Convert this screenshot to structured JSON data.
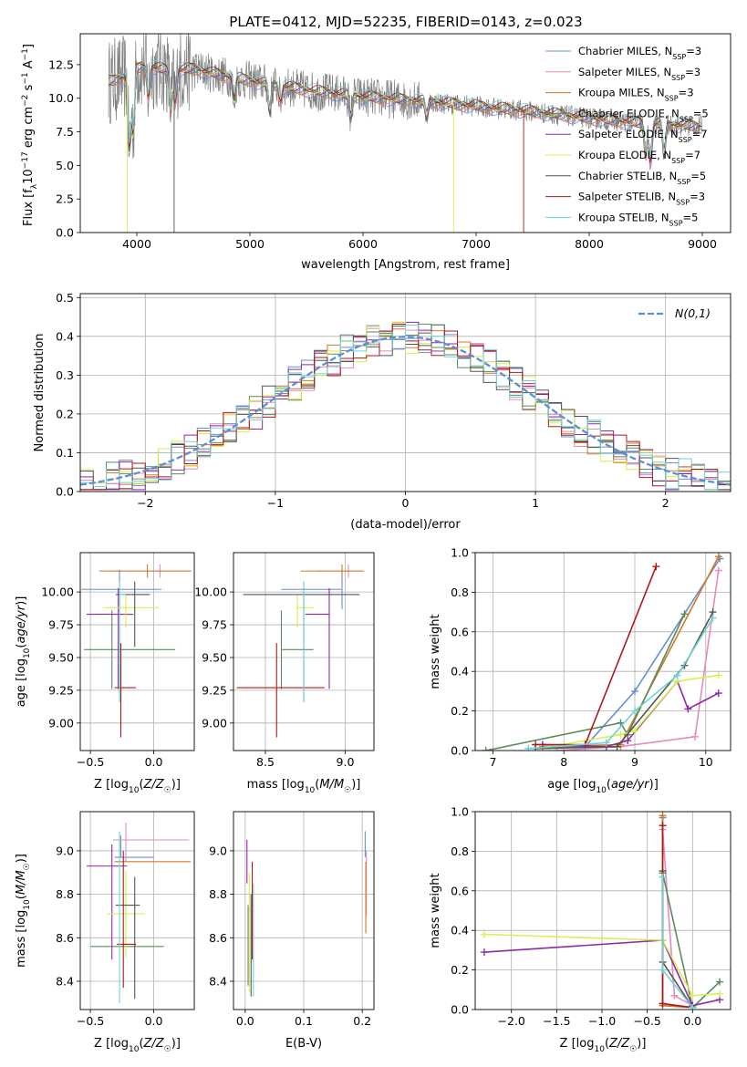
{
  "figure": {
    "title": "PLATE=0412, MJD=52235, FIBERID=0143, z=0.023"
  },
  "colors": {
    "Chabrier MILES": "#6a8fd0",
    "Salpeter MILES": "#e38bbd",
    "Kroupa MILES": "#d07a2a",
    "Chabrier ELODIE": "#5c8a5c",
    "Salpeter ELODIE": "#8e2aa6",
    "Kroupa ELODIE": "#d9ef4f",
    "Chabrier STELIB": "#555555",
    "Salpeter STELIB": "#b01818",
    "Kroupa STELIB": "#6fd3d7",
    "data": "#808080",
    "normal": "#5b8fd6",
    "grid": "#b0b0b0"
  },
  "chart_data": [
    {
      "id": "spectrum",
      "type": "line",
      "title": "PLATE=0412, MJD=52235, FIBERID=0143, z=0.023",
      "xlabel": "wavelength [Angstrom, rest frame]",
      "ylabel": "Flux [f_λ 10^-17 erg cm^-2 s^-1 A^-1]",
      "xlim": [
        3500,
        9250
      ],
      "ylim": [
        0,
        14.8
      ],
      "xticks": [
        4000,
        5000,
        6000,
        7000,
        8000,
        9000
      ],
      "yticks": [
        0.0,
        2.5,
        5.0,
        7.5,
        10.0,
        12.5
      ],
      "grid": false,
      "legend": "top-right",
      "continuum": {
        "x": [
          3750,
          3900,
          4000,
          4100,
          4300,
          4500,
          4800,
          5000,
          5500,
          6000,
          6500,
          7000,
          7500,
          8000,
          8500,
          9000
        ],
        "y": [
          11.2,
          11.6,
          12.2,
          12.4,
          12.0,
          12.2,
          11.6,
          11.3,
          10.6,
          10.1,
          9.8,
          9.4,
          9.0,
          8.5,
          8.1,
          7.9
        ]
      },
      "series": [
        {
          "name": "Chabrier MILES",
          "nssp": "3"
        },
        {
          "name": "Salpeter MILES",
          "nssp": "3"
        },
        {
          "name": "Kroupa MILES",
          "nssp": "3"
        },
        {
          "name": "Chabrier ELODIE",
          "nssp": "5"
        },
        {
          "name": "Salpeter ELODIE",
          "nssp": "7"
        },
        {
          "name": "Kroupa ELODIE",
          "nssp": "7"
        },
        {
          "name": "Chabrier STELIB",
          "nssp": "5"
        },
        {
          "name": "Salpeter STELIB",
          "nssp": "3"
        },
        {
          "name": "Kroupa STELIB",
          "nssp": "5"
        }
      ]
    },
    {
      "id": "residuals",
      "type": "line",
      "xlabel": "(data-model)/error",
      "ylabel": "Normed distribution",
      "xlim": [
        -2.5,
        2.5
      ],
      "ylim": [
        0,
        0.51
      ],
      "xticks": [
        -2,
        -1,
        0,
        1,
        2
      ],
      "yticks": [
        0.0,
        0.1,
        0.2,
        0.3,
        0.4,
        0.5
      ],
      "grid": true,
      "legend": "top-right",
      "normal_label": "N(0,1)",
      "bin_width": 0.1
    },
    {
      "id": "age_vs_Z",
      "type": "scatter",
      "xlabel": "Z [log10(Z/Z☉)]",
      "ylabel": "age  [log10(age/yr)]",
      "xlim": [
        -0.58,
        0.32
      ],
      "ylim": [
        8.79,
        10.3
      ],
      "xticks": [
        -0.5,
        0.0
      ],
      "yticks": [
        9.0,
        9.25,
        9.5,
        9.75,
        10.0
      ],
      "grid": true,
      "points": [
        {
          "model": "Chabrier MILES",
          "x": -0.27,
          "xerr": [
            0.3,
            0.33
          ],
          "y": 10.02,
          "yerr": [
            0.15,
            0.15
          ]
        },
        {
          "model": "Salpeter MILES",
          "x": 0.05,
          "xerr": [
            0.4,
            0.25
          ],
          "y": 10.16,
          "yerr": [
            0.05,
            0.05
          ]
        },
        {
          "model": "Kroupa MILES",
          "x": -0.05,
          "xerr": [
            0.38,
            0.34
          ],
          "y": 10.16,
          "yerr": [
            0.05,
            0.05
          ]
        },
        {
          "model": "Chabrier ELODIE",
          "x": -0.33,
          "xerr": [
            0.22,
            0.5
          ],
          "y": 9.56,
          "yerr": [
            0.3,
            0.3
          ]
        },
        {
          "model": "Salpeter ELODIE",
          "x": -0.28,
          "xerr": [
            0.25,
            0.12
          ],
          "y": 9.83,
          "yerr": [
            0.57,
            0.2
          ]
        },
        {
          "model": "Kroupa ELODIE",
          "x": -0.22,
          "xerr": [
            0.18,
            0.26
          ],
          "y": 9.88,
          "yerr": [
            0.15,
            0.1
          ]
        },
        {
          "model": "Chabrier STELIB",
          "x": -0.15,
          "xerr": [
            0.15,
            0.12
          ],
          "y": 9.98,
          "yerr": [
            0.4,
            0.1
          ]
        },
        {
          "model": "Salpeter STELIB",
          "x": -0.26,
          "xerr": [
            0.05,
            0.12
          ],
          "y": 9.27,
          "yerr": [
            0.38,
            0.34
          ]
        },
        {
          "model": "Kroupa STELIB",
          "x": -0.27,
          "xerr": [
            0.0,
            0.05
          ],
          "y": 9.98,
          "yerr": [
            0.82,
            0.1
          ]
        }
      ]
    },
    {
      "id": "age_vs_mass",
      "type": "scatter",
      "xlabel": "mass [log10(M/M☉)]",
      "ylabel": "",
      "xlim": [
        8.3,
        9.18
      ],
      "ylim": [
        8.79,
        10.3
      ],
      "xticks": [
        8.5,
        9.0
      ],
      "yticks": [
        9.0,
        9.25,
        9.5,
        9.75,
        10.0
      ],
      "grid": true,
      "points": [
        {
          "model": "Chabrier MILES",
          "x": 8.98,
          "xerr": [
            0.38,
            0.0
          ],
          "y": 10.02,
          "yerr": [
            0.15,
            0.15
          ]
        },
        {
          "model": "Salpeter MILES",
          "x": 9.02,
          "xerr": [
            0.2,
            0.1
          ],
          "y": 10.16,
          "yerr": [
            0.05,
            0.05
          ]
        },
        {
          "model": "Kroupa MILES",
          "x": 8.98,
          "xerr": [
            0.26,
            0.13
          ],
          "y": 10.16,
          "yerr": [
            0.05,
            0.05
          ]
        },
        {
          "model": "Chabrier ELODIE",
          "x": 8.6,
          "xerr": [
            0.0,
            0.2
          ],
          "y": 9.56,
          "yerr": [
            0.3,
            0.3
          ]
        },
        {
          "model": "Salpeter ELODIE",
          "x": 8.9,
          "xerr": [
            0.15,
            0.0
          ],
          "y": 9.83,
          "yerr": [
            0.57,
            0.2
          ]
        },
        {
          "model": "Kroupa ELODIE",
          "x": 8.7,
          "xerr": [
            0.0,
            0.1
          ],
          "y": 9.88,
          "yerr": [
            0.15,
            0.1
          ]
        },
        {
          "model": "Chabrier STELIB",
          "x": 8.74,
          "xerr": [
            0.38,
            0.35
          ],
          "y": 9.98,
          "yerr": [
            0.82,
            0.1
          ]
        },
        {
          "model": "Salpeter STELIB",
          "x": 8.57,
          "xerr": [
            0.25,
            0.3
          ],
          "y": 9.27,
          "yerr": [
            0.38,
            0.34
          ]
        },
        {
          "model": "Kroupa STELIB",
          "x": 8.74,
          "xerr": [
            0.0,
            0.0
          ],
          "y": 9.98,
          "yerr": [
            0.82,
            0.1
          ]
        }
      ]
    },
    {
      "id": "weight_vs_age",
      "type": "line",
      "xlabel": "age  [log10(age/yr)]",
      "ylabel": "mass weight",
      "xlim": [
        6.75,
        10.35
      ],
      "ylim": [
        0,
        1.0
      ],
      "xticks": [
        7,
        8,
        9,
        10
      ],
      "yticks": [
        0.0,
        0.2,
        0.4,
        0.6,
        0.8,
        1.0
      ],
      "grid": true,
      "series": [
        {
          "model": "Chabrier MILES",
          "x": [
            7.5,
            8.3,
            9.0,
            10.2
          ],
          "y": [
            0.01,
            0.02,
            0.3,
            0.97
          ]
        },
        {
          "model": "Salpeter MILES",
          "x": [
            7.9,
            8.8,
            9.85,
            10.18
          ],
          "y": [
            0.0,
            0.02,
            0.07,
            0.91
          ]
        },
        {
          "model": "Kroupa MILES",
          "x": [
            7.7,
            8.8,
            10.18
          ],
          "y": [
            0.02,
            0.03,
            0.98
          ]
        },
        {
          "model": "Chabrier ELODIE",
          "x": [
            6.9,
            8.8,
            8.9,
            9.7
          ],
          "y": [
            0.0,
            0.14,
            0.08,
            0.69
          ]
        },
        {
          "model": "Salpeter ELODIE",
          "x": [
            7.7,
            8.6,
            8.9,
            9.6,
            9.75,
            10.18
          ],
          "y": [
            0.03,
            0.02,
            0.05,
            0.35,
            0.21,
            0.29
          ]
        },
        {
          "model": "Kroupa ELODIE",
          "x": [
            7.8,
            8.8,
            9.0,
            9.6,
            10.18
          ],
          "y": [
            0.02,
            0.08,
            0.1,
            0.35,
            0.38
          ]
        },
        {
          "model": "Chabrier STELIB",
          "x": [
            7.6,
            8.75,
            9.7,
            10.1
          ],
          "y": [
            0.01,
            0.02,
            0.43,
            0.7
          ]
        },
        {
          "model": "Salpeter STELIB",
          "x": [
            7.6,
            8.3,
            9.3
          ],
          "y": [
            0.03,
            0.03,
            0.93
          ]
        },
        {
          "model": "Kroupa STELIB",
          "x": [
            7.5,
            8.6,
            9.0,
            9.6,
            10.1
          ],
          "y": [
            0.01,
            0.04,
            0.2,
            0.38,
            0.67
          ]
        }
      ]
    },
    {
      "id": "mass_vs_Z",
      "type": "scatter",
      "xlabel": "Z [log10(Z/Z☉)]",
      "ylabel": "mass [log10(M/M☉)]",
      "xlim": [
        -0.58,
        0.32
      ],
      "ylim": [
        8.27,
        9.18
      ],
      "xticks": [
        -0.5,
        0.0
      ],
      "yticks": [
        8.4,
        8.6,
        8.8,
        9.0
      ],
      "grid": true,
      "points": [
        {
          "model": "Chabrier MILES",
          "x": -0.26,
          "xerr": [
            0.05,
            0.26
          ],
          "y": 8.97,
          "yerr": [
            0.0,
            0.1
          ]
        },
        {
          "model": "Salpeter MILES",
          "x": -0.22,
          "xerr": [
            0.1,
            0.5
          ],
          "y": 9.05,
          "yerr": [
            0.1,
            0.08
          ]
        },
        {
          "model": "Kroupa MILES",
          "x": -0.26,
          "xerr": [
            0.05,
            0.55
          ],
          "y": 8.95,
          "yerr": [
            0.0,
            0.0
          ]
        },
        {
          "model": "Chabrier ELODIE",
          "x": -0.2,
          "xerr": [
            0.3,
            0.28
          ],
          "y": 8.56,
          "yerr": [
            0.0,
            0.0
          ]
        },
        {
          "model": "Salpeter ELODIE",
          "x": -0.33,
          "xerr": [
            0.2,
            0.12
          ],
          "y": 8.93,
          "yerr": [
            0.43,
            0.1
          ]
        },
        {
          "model": "Kroupa ELODIE",
          "x": -0.22,
          "xerr": [
            0.15,
            0.15
          ],
          "y": 8.71,
          "yerr": [
            0.2,
            0.2
          ]
        },
        {
          "model": "Chabrier STELIB",
          "x": -0.15,
          "xerr": [
            0.15,
            0.04
          ],
          "y": 8.75,
          "yerr": [
            0.43,
            0.13
          ]
        },
        {
          "model": "Salpeter STELIB",
          "x": -0.24,
          "xerr": [
            0.05,
            0.1
          ],
          "y": 8.57,
          "yerr": [
            0.2,
            0.43
          ]
        },
        {
          "model": "Kroupa STELIB",
          "x": -0.27,
          "xerr": [
            0.0,
            0.0
          ],
          "y": 8.97,
          "yerr": [
            0.67,
            0.12
          ]
        }
      ]
    },
    {
      "id": "mass_vs_ebv",
      "type": "scatter",
      "xlabel": "E(B-V)",
      "ylabel": "",
      "xlim": [
        -0.02,
        0.22
      ],
      "ylim": [
        8.27,
        9.18
      ],
      "xticks": [
        0.0,
        0.1,
        0.2
      ],
      "yticks": [
        8.4,
        8.6,
        8.8,
        9.0
      ],
      "grid": true,
      "points": [
        {
          "model": "Chabrier MILES",
          "x": 0.205,
          "y": 8.97,
          "yerr": [
            0.0,
            0.12
          ]
        },
        {
          "model": "Salpeter MILES",
          "x": 0.207,
          "y": 8.9,
          "yerr": [
            0.2,
            0.1
          ]
        },
        {
          "model": "Kroupa MILES",
          "x": 0.206,
          "y": 8.85,
          "yerr": [
            0.23,
            0.1
          ]
        },
        {
          "model": "Chabrier ELODIE",
          "x": 0.005,
          "y": 8.5,
          "yerr": [
            0.12,
            0.25
          ]
        },
        {
          "model": "Salpeter ELODIE",
          "x": 0.003,
          "y": 8.95,
          "yerr": [
            0.1,
            0.1
          ]
        },
        {
          "model": "Kroupa ELODIE",
          "x": 0.007,
          "y": 8.7,
          "yerr": [
            0.35,
            0.2
          ]
        },
        {
          "model": "Chabrier STELIB",
          "x": 0.01,
          "y": 8.6,
          "yerr": [
            0.27,
            0.2
          ]
        },
        {
          "model": "Salpeter STELIB",
          "x": 0.012,
          "y": 8.7,
          "yerr": [
            0.2,
            0.25
          ]
        },
        {
          "model": "Kroupa STELIB",
          "x": 0.014,
          "y": 8.55,
          "yerr": [
            0.22,
            0.3
          ]
        }
      ]
    },
    {
      "id": "weight_vs_Z",
      "type": "line",
      "xlabel": "Z [log10(Z/Z☉)]",
      "ylabel": "mass weight",
      "xlim": [
        -2.4,
        0.42
      ],
      "ylim": [
        0,
        1.0
      ],
      "xticks": [
        -2.0,
        -1.5,
        -1.0,
        -0.5,
        0.0
      ],
      "yticks": [
        0.0,
        0.2,
        0.4,
        0.6,
        0.8,
        1.0
      ],
      "grid": true,
      "series": [
        {
          "model": "Chabrier MILES",
          "x": [
            -0.33,
            -0.33,
            0.0
          ],
          "y": [
            0.97,
            0.03,
            0.01
          ]
        },
        {
          "model": "Salpeter MILES",
          "x": [
            -0.33,
            -0.2,
            0.0
          ],
          "y": [
            0.91,
            0.07,
            0.02
          ]
        },
        {
          "model": "Kroupa MILES",
          "x": [
            -0.33,
            -0.33,
            0.0
          ],
          "y": [
            0.98,
            0.02,
            0.01
          ]
        },
        {
          "model": "Chabrier ELODIE",
          "x": [
            -0.33,
            0.0,
            0.3
          ],
          "y": [
            0.69,
            0.01,
            0.14
          ]
        },
        {
          "model": "Salpeter ELODIE",
          "x": [
            -2.3,
            -0.33,
            0.0,
            0.3
          ],
          "y": [
            0.29,
            0.35,
            0.02,
            0.05
          ]
        },
        {
          "model": "Kroupa ELODIE",
          "x": [
            -2.3,
            -0.33,
            0.0,
            0.3
          ],
          "y": [
            0.38,
            0.35,
            0.07,
            0.08
          ]
        },
        {
          "model": "Chabrier STELIB",
          "x": [
            -0.33,
            -0.33,
            0.0
          ],
          "y": [
            0.7,
            0.24,
            0.01
          ]
        },
        {
          "model": "Salpeter STELIB",
          "x": [
            -0.33,
            -0.33,
            0.0
          ],
          "y": [
            0.93,
            0.03,
            0.01
          ]
        },
        {
          "model": "Kroupa STELIB",
          "x": [
            -0.33,
            -0.33,
            0.0
          ],
          "y": [
            0.67,
            0.2,
            0.01
          ]
        }
      ]
    }
  ]
}
